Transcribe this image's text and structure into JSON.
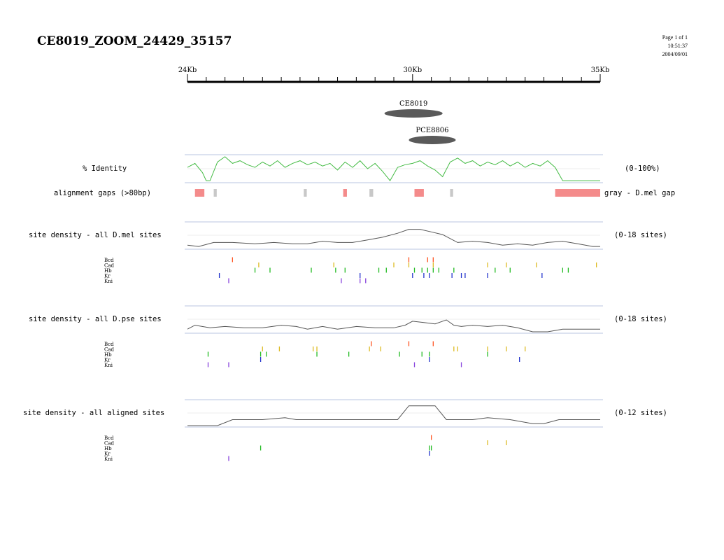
{
  "title": "CE8019_ZOOM_24429_35157",
  "page_info": [
    "Page 1 of 1",
    "10:51:37",
    "2004/09/01"
  ],
  "ruler": {
    "start_kb": 24,
    "end_kb": 35,
    "labels": [
      {
        "kb": 24,
        "text": "24Kb"
      },
      {
        "kb": 30,
        "text": "30Kb"
      },
      {
        "kb": 35,
        "text": "35Kb"
      }
    ]
  },
  "features": [
    {
      "name": "CE8019",
      "start_kb": 29.25,
      "end_kb": 30.8
    },
    {
      "name": "PCE8806",
      "start_kb": 29.9,
      "end_kb": 31.15
    }
  ],
  "identity": {
    "label": "% Identity",
    "range_label": "(0-100%)",
    "color": "#44bb44",
    "x_kb": [
      24,
      24.2,
      24.4,
      24.5,
      24.6,
      24.8,
      25.0,
      25.2,
      25.4,
      25.6,
      25.8,
      26.0,
      26.2,
      26.4,
      26.6,
      26.8,
      27.0,
      27.2,
      27.4,
      27.6,
      27.8,
      28.0,
      28.2,
      28.4,
      28.6,
      28.8,
      29.0,
      29.2,
      29.4,
      29.6,
      29.8,
      30.0,
      30.2,
      30.4,
      30.6,
      30.8,
      31.0,
      31.2,
      31.4,
      31.6,
      31.8,
      32.0,
      32.2,
      32.4,
      32.6,
      32.8,
      33.0,
      33.2,
      33.4,
      33.6,
      33.8,
      34.0,
      34.2,
      35.0
    ],
    "values": [
      55,
      70,
      35,
      5,
      5,
      75,
      95,
      70,
      80,
      65,
      55,
      75,
      60,
      80,
      55,
      70,
      80,
      65,
      75,
      60,
      70,
      45,
      75,
      55,
      80,
      50,
      70,
      40,
      5,
      55,
      65,
      70,
      80,
      60,
      45,
      20,
      75,
      90,
      70,
      80,
      60,
      75,
      65,
      80,
      60,
      75,
      55,
      70,
      60,
      80,
      55,
      5,
      5,
      5
    ]
  },
  "alignment_gaps": {
    "label": "alignment gaps (>80bp)",
    "legend": "gray - D.mel gap",
    "colors": {
      "pse": "#f48b8b",
      "mel": "#c8c8c8"
    },
    "gaps": [
      {
        "start_kb": 24.2,
        "end_kb": 24.45,
        "kind": "pse"
      },
      {
        "start_kb": 24.7,
        "end_kb": 24.78,
        "kind": "mel"
      },
      {
        "start_kb": 27.1,
        "end_kb": 27.18,
        "kind": "mel"
      },
      {
        "start_kb": 28.15,
        "end_kb": 28.25,
        "kind": "pse"
      },
      {
        "start_kb": 28.85,
        "end_kb": 28.95,
        "kind": "mel"
      },
      {
        "start_kb": 30.05,
        "end_kb": 30.3,
        "kind": "pse"
      },
      {
        "start_kb": 31.0,
        "end_kb": 31.08,
        "kind": "mel"
      },
      {
        "start_kb": 33.8,
        "end_kb": 35.0,
        "kind": "pse"
      }
    ]
  },
  "factor_colors": {
    "Bcd": "#ff5522",
    "Cad": "#ddbb22",
    "Hb": "#22bb22",
    "Kr": "#2233cc",
    "Kni": "#8844dd"
  },
  "sections": [
    {
      "label": "site density - all D.mel sites",
      "range_label": "(0-18 sites)",
      "max": 18,
      "density_x": [
        24,
        24.3,
        24.7,
        25.2,
        25.8,
        26.3,
        26.8,
        27.2,
        27.6,
        28.0,
        28.4,
        28.8,
        29.2,
        29.6,
        29.9,
        30.2,
        30.5,
        30.8,
        31.2,
        31.6,
        32.0,
        32.4,
        32.8,
        33.2,
        33.6,
        34.0,
        34.4,
        34.8,
        35.0
      ],
      "density": [
        2,
        1,
        4,
        4,
        3,
        4,
        3,
        3,
        5,
        4,
        4,
        6,
        8,
        11,
        14,
        14,
        12,
        10,
        4,
        5,
        4,
        2,
        3,
        2,
        4,
        5,
        3,
        1,
        1
      ],
      "tracks": [
        {
          "name": "Bcd",
          "positions": [
            25.2,
            29.9,
            30.4,
            30.55
          ]
        },
        {
          "name": "Cad",
          "positions": [
            25.9,
            27.9,
            29.5,
            29.9,
            30.55,
            32.0,
            32.5,
            33.3,
            34.9
          ]
        },
        {
          "name": "Hb",
          "positions": [
            25.8,
            26.2,
            27.3,
            27.95,
            28.2,
            29.1,
            29.3,
            30.05,
            30.25,
            30.4,
            30.55,
            30.7,
            31.1,
            32.2,
            32.6,
            34.0,
            34.15
          ]
        },
        {
          "name": "Kr",
          "positions": [
            24.85,
            28.6,
            30.0,
            30.3,
            30.45,
            31.05,
            31.3,
            31.4,
            32.0,
            33.45
          ]
        },
        {
          "name": "Kni",
          "positions": [
            25.1,
            28.1,
            28.6,
            28.75
          ]
        }
      ]
    },
    {
      "label": "site density - all D.pse sites",
      "range_label": "(0-18 sites)",
      "max": 18,
      "density_x": [
        24,
        24.2,
        24.6,
        25.0,
        25.5,
        26.0,
        26.5,
        26.9,
        27.2,
        27.6,
        28.0,
        28.5,
        29.0,
        29.5,
        29.8,
        30.0,
        30.3,
        30.6,
        30.9,
        31.1,
        31.3,
        31.6,
        32.0,
        32.4,
        32.8,
        33.2,
        33.6,
        34.0,
        34.5,
        35.0
      ],
      "density": [
        2,
        5,
        3,
        4,
        3,
        3,
        5,
        4,
        2,
        4,
        2,
        4,
        3,
        3,
        5,
        8,
        7,
        6,
        9,
        5,
        4,
        5,
        4,
        5,
        3,
        0,
        0,
        2,
        2,
        2
      ],
      "tracks": [
        {
          "name": "Bcd",
          "positions": [
            28.9,
            29.9,
            30.55
          ]
        },
        {
          "name": "Cad",
          "positions": [
            26.0,
            26.45,
            27.35,
            27.45,
            28.85,
            29.15,
            31.1,
            31.2,
            32.0,
            32.5,
            33.0
          ]
        },
        {
          "name": "Hb",
          "positions": [
            24.55,
            25.95,
            26.1,
            27.45,
            28.3,
            29.65,
            30.25,
            30.45,
            32.0
          ]
        },
        {
          "name": "Kr",
          "positions": [
            25.95,
            30.45,
            32.85
          ]
        },
        {
          "name": "Kni",
          "positions": [
            24.55,
            25.1,
            30.05,
            31.3
          ]
        }
      ]
    },
    {
      "label": "site density - all aligned sites",
      "range_label": "(0-12 sites)",
      "max": 12,
      "density_x": [
        24,
        24.8,
        25.2,
        26.0,
        26.6,
        26.9,
        27.4,
        28.2,
        28.8,
        29.3,
        29.6,
        29.9,
        30.6,
        30.9,
        31.3,
        31.6,
        32.0,
        32.6,
        33.2,
        33.5,
        33.9,
        35.0
      ],
      "density": [
        0,
        0,
        3,
        3,
        4,
        3,
        3,
        3,
        3,
        3,
        3,
        10,
        10,
        3,
        3,
        3,
        4,
        3,
        1,
        1,
        3,
        3
      ],
      "tracks": [
        {
          "name": "Bcd",
          "positions": [
            30.5
          ]
        },
        {
          "name": "Cad",
          "positions": [
            32.0,
            32.5
          ]
        },
        {
          "name": "Hb",
          "positions": [
            25.95,
            30.45,
            30.5
          ]
        },
        {
          "name": "Kr",
          "positions": [
            30.45
          ]
        },
        {
          "name": "Kni",
          "positions": [
            25.1
          ]
        }
      ]
    }
  ]
}
